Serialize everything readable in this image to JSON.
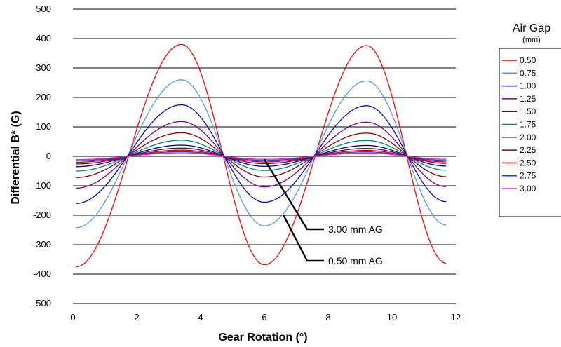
{
  "chart_data": {
    "type": "line",
    "xlabel": "Gear Rotation (°)",
    "ylabel": "Differential B* (G)",
    "xlim": [
      0,
      12
    ],
    "ylim": [
      -500,
      500
    ],
    "x_ticks": [
      "0",
      "2",
      "4",
      "6",
      "8",
      "10",
      "12"
    ],
    "y_ticks": [
      "500",
      "400",
      "300",
      "200",
      "100",
      "0",
      "-100",
      "-200",
      "-300",
      "-400",
      "-500"
    ],
    "grid": "horizontal",
    "legend_title": "Air Gap",
    "legend_subtitle": "(mm)",
    "legend_position": "right",
    "series": [
      {
        "name": "0.50",
        "color": "#ff0000",
        "values": [
          [
            0.1,
            -375
          ],
          [
            3.4,
            380
          ],
          [
            6.0,
            -368
          ],
          [
            9.2,
            376
          ],
          [
            11.7,
            -363
          ]
        ]
      },
      {
        "name": "0.75",
        "color": "#5b9bd5",
        "values": [
          [
            0.1,
            -242
          ],
          [
            3.4,
            260
          ],
          [
            6.0,
            -236
          ],
          [
            9.2,
            256
          ],
          [
            11.7,
            -233
          ]
        ]
      },
      {
        "name": "1.00",
        "color": "#0000cc",
        "values": [
          [
            0.1,
            -160
          ],
          [
            3.4,
            175
          ],
          [
            6.0,
            -156
          ],
          [
            9.2,
            172
          ],
          [
            11.7,
            -154
          ]
        ]
      },
      {
        "name": "1.25",
        "color": "#800080",
        "values": [
          [
            0.1,
            -108
          ],
          [
            3.4,
            118
          ],
          [
            6.0,
            -104
          ],
          [
            9.2,
            116
          ],
          [
            11.7,
            -103
          ]
        ]
      },
      {
        "name": "1.50",
        "color": "#800000",
        "values": [
          [
            0.1,
            -72
          ],
          [
            3.4,
            80
          ],
          [
            6.0,
            -70
          ],
          [
            9.2,
            79
          ],
          [
            11.7,
            -69
          ]
        ]
      },
      {
        "name": "1.75",
        "color": "#008080",
        "values": [
          [
            0.1,
            -50
          ],
          [
            3.4,
            55
          ],
          [
            6.0,
            -48
          ],
          [
            9.2,
            54
          ],
          [
            11.7,
            -47
          ]
        ]
      },
      {
        "name": "2.00",
        "color": "#000080",
        "values": [
          [
            0.1,
            -35
          ],
          [
            3.4,
            38
          ],
          [
            6.0,
            -34
          ],
          [
            9.2,
            37
          ],
          [
            11.7,
            -33
          ]
        ]
      },
      {
        "name": "2.25",
        "color": "#660066",
        "values": [
          [
            0.1,
            -26
          ],
          [
            3.4,
            28
          ],
          [
            6.0,
            -25
          ],
          [
            9.2,
            27
          ],
          [
            11.7,
            -24
          ]
        ]
      },
      {
        "name": "2.50",
        "color": "#cc0000",
        "values": [
          [
            0.1,
            -20
          ],
          [
            3.4,
            21
          ],
          [
            6.0,
            -19
          ],
          [
            9.2,
            20
          ],
          [
            11.7,
            -19
          ]
        ]
      },
      {
        "name": "2.75",
        "color": "#1f3fbf",
        "values": [
          [
            0.1,
            -15
          ],
          [
            3.4,
            16
          ],
          [
            6.0,
            -14
          ],
          [
            9.2,
            15
          ],
          [
            11.7,
            -14
          ]
        ]
      },
      {
        "name": "3.00",
        "color": "#e020c0",
        "values": [
          [
            0.1,
            -11
          ],
          [
            3.4,
            12
          ],
          [
            6.0,
            -10
          ],
          [
            9.2,
            11
          ],
          [
            11.7,
            -10
          ]
        ]
      }
    ],
    "annotations": [
      {
        "text": "3.00 mm AG",
        "target": [
          6.0,
          -10
        ],
        "series": "3.00"
      },
      {
        "text": "0.50 mm AG",
        "target": [
          6.6,
          -200
        ],
        "series": "0.50"
      }
    ]
  }
}
